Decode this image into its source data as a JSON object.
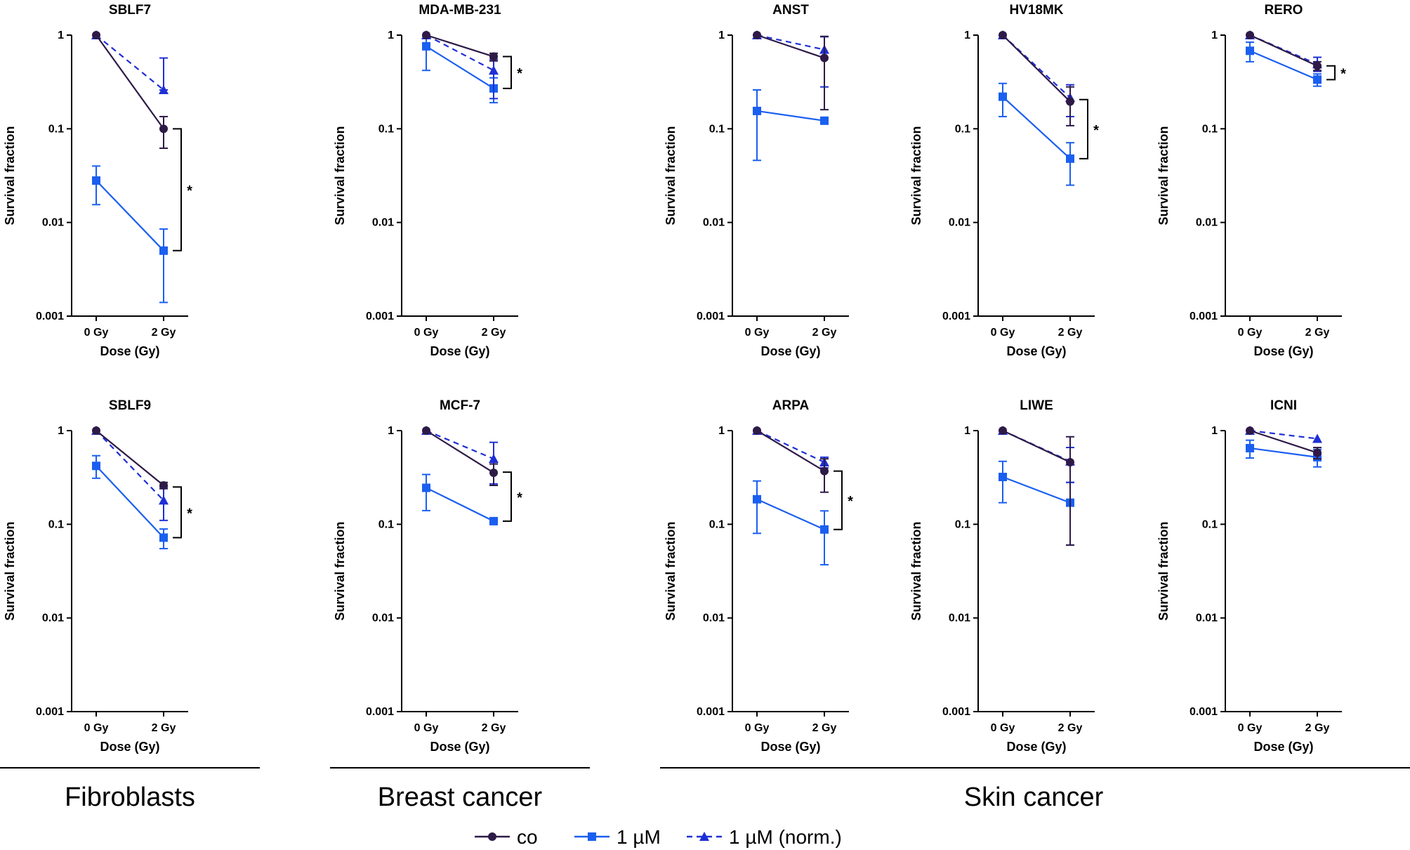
{
  "colors": {
    "co": "#2e1a47",
    "um": "#1a5ff0",
    "norm": "#1e2fd6",
    "axis": "#000000"
  },
  "common": {
    "ylabel": "Survival fraction",
    "xlabel": "Dose (Gy)",
    "xticks": [
      "0 Gy",
      "2 Gy"
    ],
    "yticks": [
      {
        "v": 1,
        "label": "1"
      },
      {
        "v": 0.1,
        "label": "0.1"
      },
      {
        "v": 0.01,
        "label": "0.01"
      },
      {
        "v": 0.001,
        "label": "0.001"
      }
    ]
  },
  "groups": [
    {
      "label": "Fibroblasts"
    },
    {
      "label": "Breast cancer"
    },
    {
      "label": "Skin cancer"
    }
  ],
  "legend": [
    {
      "key": "co",
      "label": "co"
    },
    {
      "key": "um",
      "label": "1 µM"
    },
    {
      "key": "norm",
      "label": "1 µM (norm.)"
    }
  ],
  "chart_data": [
    {
      "type": "line",
      "title": "SBLF7",
      "xlabel": "Dose (Gy)",
      "ylabel": "Survival fraction",
      "ylim": [
        0.001,
        1
      ],
      "yscale": "log",
      "categories": [
        "0 Gy",
        "2 Gy"
      ],
      "series": [
        {
          "name": "co",
          "values": [
            1,
            0.1
          ],
          "err": [
            [
              1,
              1
            ],
            [
              0.062,
              0.135
            ]
          ]
        },
        {
          "name": "1 µM",
          "values": [
            0.028,
            0.005
          ],
          "err": [
            [
              0.0155,
              0.04
            ],
            [
              0.0014,
              0.0085
            ]
          ]
        },
        {
          "name": "1 µM (norm.)",
          "values": [
            1,
            0.26
          ],
          "err": [
            [
              1,
              1
            ],
            [
              0.26,
              0.57
            ]
          ]
        }
      ],
      "significance": {
        "label": "*",
        "from": 0.1,
        "to": 0.005
      }
    },
    {
      "type": "line",
      "title": "MDA-MB-231",
      "xlabel": "Dose (Gy)",
      "ylabel": "Survival fraction",
      "ylim": [
        0.001,
        1
      ],
      "yscale": "log",
      "categories": [
        "0 Gy",
        "2 Gy"
      ],
      "series": [
        {
          "name": "co",
          "values": [
            1,
            0.59
          ],
          "err": [
            [
              1,
              1
            ],
            [
              0.53,
              0.64
            ]
          ]
        },
        {
          "name": "1 µM",
          "values": [
            0.76,
            0.27
          ],
          "err": [
            [
              0.42,
              0.98
            ],
            [
              0.19,
              0.35
            ]
          ]
        },
        {
          "name": "1 µM (norm.)",
          "values": [
            1,
            0.42
          ],
          "err": [
            [
              1,
              1
            ],
            [
              0.21,
              0.55
            ]
          ]
        }
      ],
      "significance": {
        "label": "*",
        "from": 0.59,
        "to": 0.27
      }
    },
    {
      "type": "line",
      "title": "ANST",
      "xlabel": "Dose (Gy)",
      "ylabel": "Survival fraction",
      "ylim": [
        0.001,
        1
      ],
      "yscale": "log",
      "categories": [
        "0 Gy",
        "2 Gy"
      ],
      "series": [
        {
          "name": "co",
          "values": [
            1,
            0.57
          ],
          "err": [
            [
              1,
              1
            ],
            [
              0.16,
              0.97
            ]
          ]
        },
        {
          "name": "1 µM",
          "values": [
            0.155,
            0.122
          ],
          "err": [
            [
              0.046,
              0.26
            ],
            [
              0.122,
              0.122
            ]
          ]
        },
        {
          "name": "1 µM (norm.)",
          "values": [
            1,
            0.7
          ],
          "err": [
            [
              1,
              1
            ],
            [
              0.28,
              0.96
            ]
          ]
        }
      ],
      "significance": null
    },
    {
      "type": "line",
      "title": "HV18MK",
      "xlabel": "Dose (Gy)",
      "ylabel": "Survival fraction",
      "ylim": [
        0.001,
        1
      ],
      "yscale": "log",
      "categories": [
        "0 Gy",
        "2 Gy"
      ],
      "series": [
        {
          "name": "co",
          "values": [
            1,
            0.195
          ],
          "err": [
            [
              1,
              1
            ],
            [
              0.108,
              0.28
            ]
          ]
        },
        {
          "name": "1 µM",
          "values": [
            0.22,
            0.048
          ],
          "err": [
            [
              0.135,
              0.305
            ],
            [
              0.025,
              0.071
            ]
          ]
        },
        {
          "name": "1 µM (norm.)",
          "values": [
            1,
            0.215
          ],
          "err": [
            [
              1,
              1
            ],
            [
              0.135,
              0.295
            ]
          ]
        }
      ],
      "significance": {
        "label": "*",
        "from": 0.205,
        "to": 0.048
      }
    },
    {
      "type": "line",
      "title": "RERO",
      "xlabel": "Dose (Gy)",
      "ylabel": "Survival fraction",
      "ylim": [
        0.001,
        1
      ],
      "yscale": "log",
      "categories": [
        "0 Gy",
        "2 Gy"
      ],
      "series": [
        {
          "name": "co",
          "values": [
            1,
            0.47
          ],
          "err": [
            [
              1,
              1
            ],
            [
              0.42,
              0.52
            ]
          ]
        },
        {
          "name": "1 µM",
          "values": [
            0.68,
            0.335
          ],
          "err": [
            [
              0.52,
              0.84
            ],
            [
              0.285,
              0.385
            ]
          ]
        },
        {
          "name": "1 µM (norm.)",
          "values": [
            1,
            0.49
          ],
          "err": [
            [
              1,
              1
            ],
            [
              0.41,
              0.58
            ]
          ]
        }
      ],
      "significance": {
        "label": "*",
        "from": 0.47,
        "to": 0.335
      }
    },
    {
      "type": "line",
      "title": "SBLF9",
      "xlabel": "Dose (Gy)",
      "ylabel": "Survival fraction",
      "ylim": [
        0.001,
        1
      ],
      "yscale": "log",
      "categories": [
        "0 Gy",
        "2 Gy"
      ],
      "series": [
        {
          "name": "co",
          "values": [
            1,
            0.26
          ],
          "err": [
            [
              1,
              1
            ],
            [
              0.24,
              0.28
            ]
          ]
        },
        {
          "name": "1 µM",
          "values": [
            0.42,
            0.072
          ],
          "err": [
            [
              0.31,
              0.54
            ],
            [
              0.055,
              0.089
            ]
          ]
        },
        {
          "name": "1 µM (norm.)",
          "values": [
            1,
            0.18
          ],
          "err": [
            [
              1,
              1
            ],
            [
              0.11,
              0.25
            ]
          ]
        }
      ],
      "significance": {
        "label": "*",
        "from": 0.25,
        "to": 0.072
      }
    },
    {
      "type": "line",
      "title": "MCF-7",
      "xlabel": "Dose (Gy)",
      "ylabel": "Survival fraction",
      "ylim": [
        0.001,
        1
      ],
      "yscale": "log",
      "categories": [
        "0 Gy",
        "2 Gy"
      ],
      "series": [
        {
          "name": "co",
          "values": [
            1,
            0.355
          ],
          "err": [
            [
              1,
              1
            ],
            [
              0.26,
              0.44
            ]
          ]
        },
        {
          "name": "1 µM",
          "values": [
            0.245,
            0.108
          ],
          "err": [
            [
              0.14,
              0.34
            ],
            [
              0.1,
              0.116
            ]
          ]
        },
        {
          "name": "1 µM (norm.)",
          "values": [
            1,
            0.5
          ],
          "err": [
            [
              1,
              1
            ],
            [
              0.27,
              0.75
            ]
          ]
        }
      ],
      "significance": {
        "label": "*",
        "from": 0.36,
        "to": 0.108
      }
    },
    {
      "type": "line",
      "title": "ARPA",
      "xlabel": "Dose (Gy)",
      "ylabel": "Survival fraction",
      "ylim": [
        0.001,
        1
      ],
      "yscale": "log",
      "categories": [
        "0 Gy",
        "2 Gy"
      ],
      "series": [
        {
          "name": "co",
          "values": [
            1,
            0.37
          ],
          "err": [
            [
              1,
              1
            ],
            [
              0.22,
              0.5
            ]
          ]
        },
        {
          "name": "1 µM",
          "values": [
            0.185,
            0.088
          ],
          "err": [
            [
              0.08,
              0.29
            ],
            [
              0.037,
              0.139
            ]
          ]
        },
        {
          "name": "1 µM (norm.)",
          "values": [
            1,
            0.46
          ],
          "err": [
            [
              1,
              1
            ],
            [
              0.4,
              0.52
            ]
          ]
        }
      ],
      "significance": {
        "label": "*",
        "from": 0.37,
        "to": 0.088
      }
    },
    {
      "type": "line",
      "title": "LIWE",
      "xlabel": "Dose (Gy)",
      "ylabel": "Survival fraction",
      "ylim": [
        0.001,
        1
      ],
      "yscale": "log",
      "categories": [
        "0 Gy",
        "2 Gy"
      ],
      "series": [
        {
          "name": "co",
          "values": [
            1,
            0.46
          ],
          "err": [
            [
              1,
              1
            ],
            [
              0.06,
              0.86
            ]
          ]
        },
        {
          "name": "1 µM",
          "values": [
            0.32,
            0.17
          ],
          "err": [
            [
              0.17,
              0.47
            ],
            [
              0.06,
              0.28
            ]
          ]
        },
        {
          "name": "1 µM (norm.)",
          "values": [
            1,
            0.47
          ],
          "err": [
            [
              1,
              1
            ],
            [
              0.28,
              0.66
            ]
          ]
        }
      ],
      "significance": null
    },
    {
      "type": "line",
      "title": "ICNI",
      "xlabel": "Dose (Gy)",
      "ylabel": "Survival fraction",
      "ylim": [
        0.001,
        1
      ],
      "yscale": "log",
      "categories": [
        "0 Gy",
        "2 Gy"
      ],
      "series": [
        {
          "name": "co",
          "values": [
            1,
            0.58
          ],
          "err": [
            [
              1,
              1
            ],
            [
              0.5,
              0.66
            ]
          ]
        },
        {
          "name": "1 µM",
          "values": [
            0.65,
            0.52
          ],
          "err": [
            [
              0.51,
              0.79
            ],
            [
              0.41,
              0.63
            ]
          ]
        },
        {
          "name": "1 µM (norm.)",
          "values": [
            1,
            0.82
          ],
          "err": [
            [
              1,
              1
            ],
            [
              0.82,
              0.82
            ]
          ]
        }
      ],
      "significance": null
    }
  ]
}
